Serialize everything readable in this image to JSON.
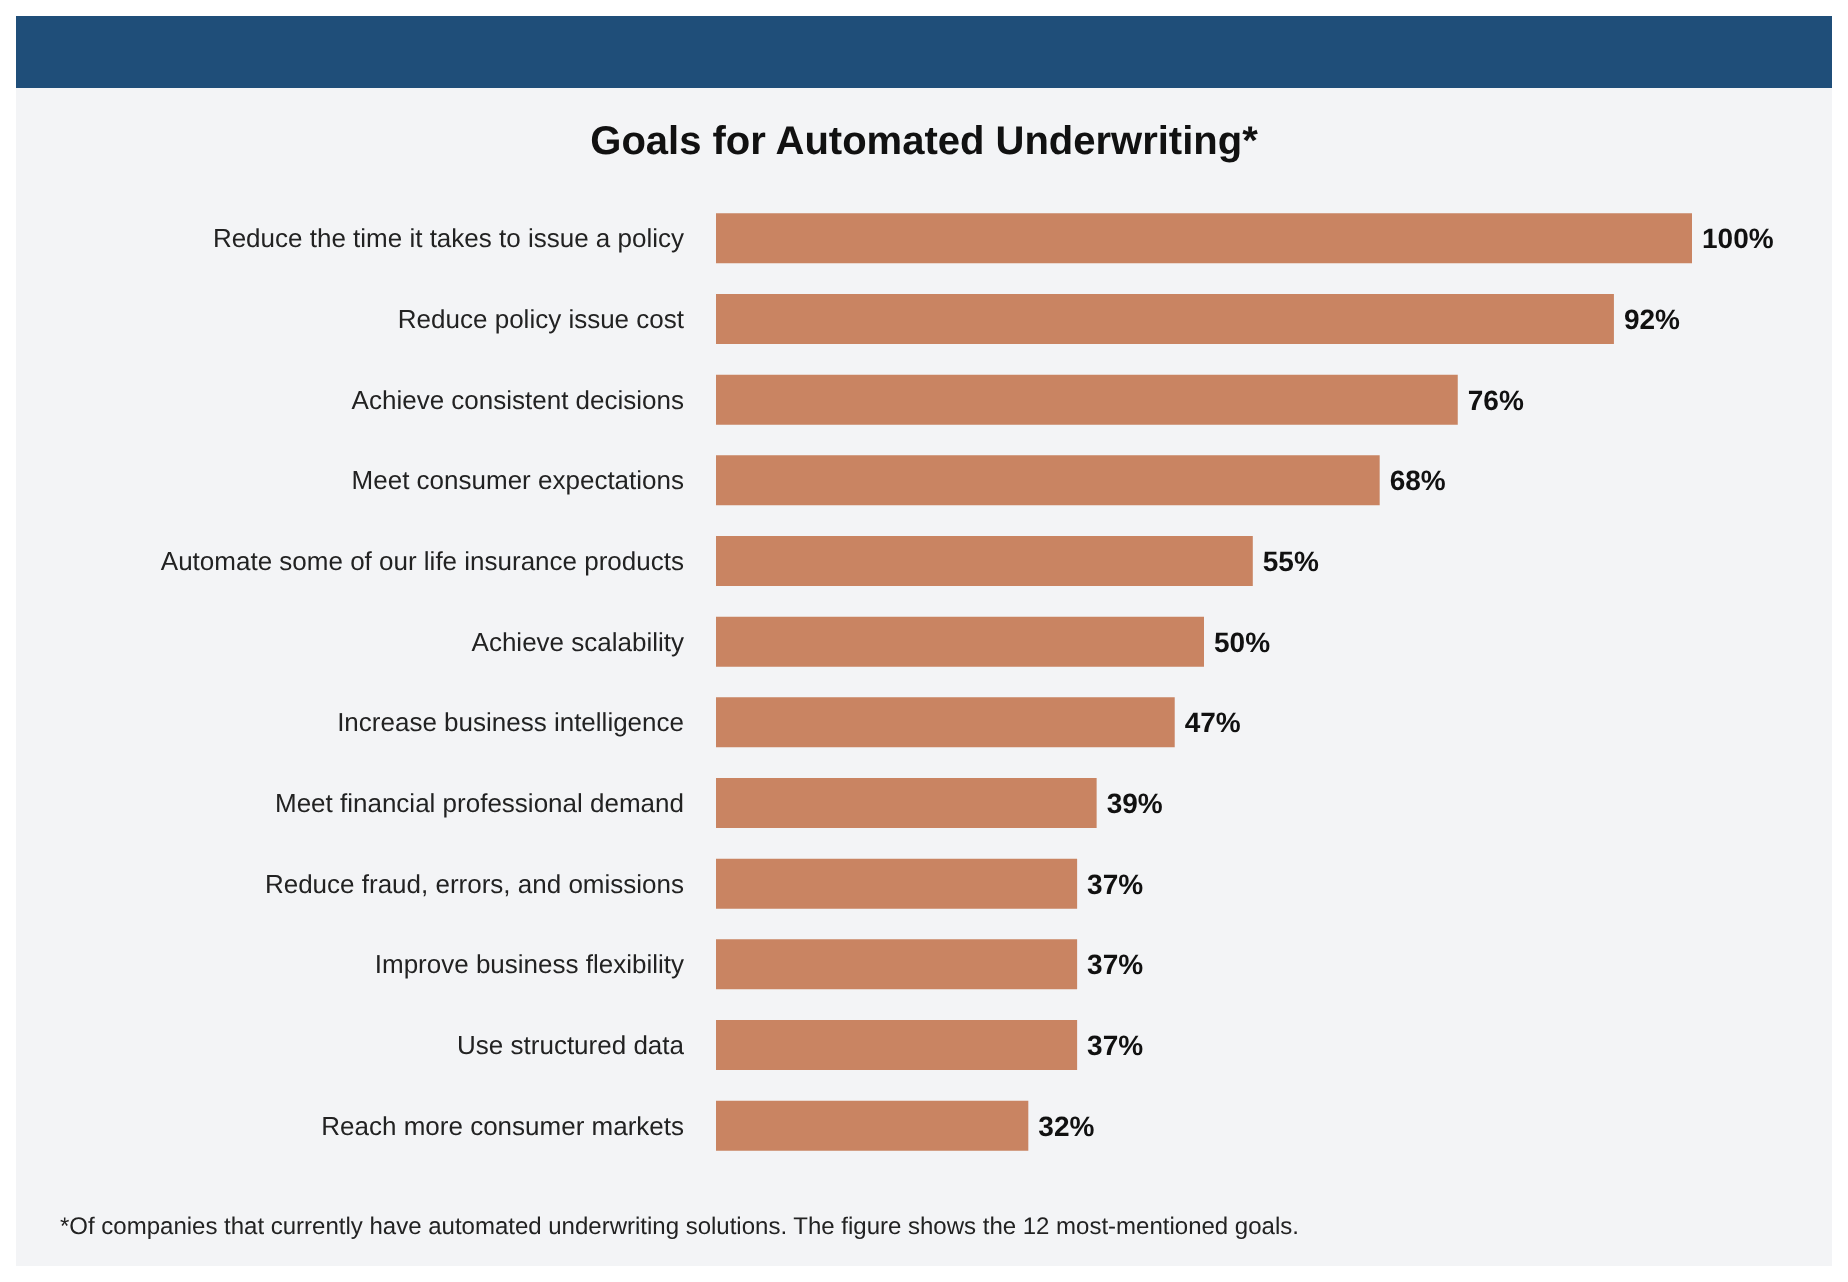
{
  "chart_data": {
    "type": "bar",
    "orientation": "horizontal",
    "title": "Goals for Automated Underwriting*",
    "categories": [
      "Reduce the time it takes to issue a policy",
      "Reduce policy issue cost",
      "Achieve consistent decisions",
      "Meet consumer expectations",
      "Automate some of our life insurance products",
      "Achieve scalability",
      "Increase business intelligence",
      "Meet financial professional demand",
      "Reduce fraud, errors, and omissions",
      "Improve business flexibility",
      "Use structured data",
      "Reach more consumer markets"
    ],
    "values": [
      100,
      92,
      76,
      68,
      55,
      50,
      47,
      39,
      37,
      37,
      37,
      32
    ],
    "value_labels": [
      "100%",
      "92%",
      "76%",
      "68%",
      "55%",
      "50%",
      "47%",
      "39%",
      "37%",
      "37%",
      "37%",
      "32%"
    ],
    "color": "#c98462",
    "annotations": [
      "*Of companies that currently have automated underwriting solutions. The figure shows the 12 most-mentioned goals."
    ]
  }
}
